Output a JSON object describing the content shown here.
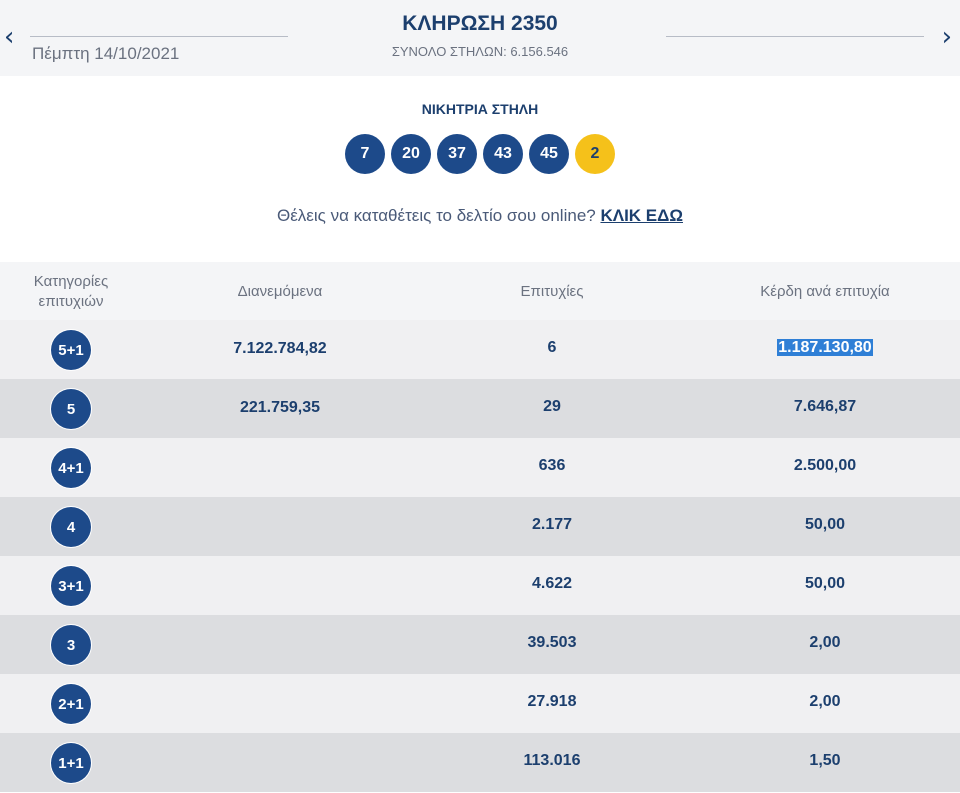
{
  "header": {
    "date": "Πέμπτη 14/10/2021",
    "title": "ΚΛΗΡΩΣΗ 2350",
    "total_columns": "ΣΥΝΟΛΟ ΣΤΗΛΩΝ: 6.156.546",
    "prev_icon": "chevron-left-icon",
    "next_icon": "chevron-right-icon",
    "prev_glyph": "‹",
    "next_glyph": "›"
  },
  "winning": {
    "label": "ΝΙΚΗΤΡΙΑ ΣΤΗΛΗ",
    "numbers": [
      "7",
      "20",
      "37",
      "43",
      "45"
    ],
    "bonus": "2"
  },
  "promo": {
    "text": "Θέλεις να καταθέτεις το δελτίο σου online?",
    "link": "ΚΛΙΚ ΕΔΩ"
  },
  "table": {
    "headers": {
      "category_line1": "Κατηγορίες",
      "category_line2": "επιτυχιών",
      "distributed": "Διανεμόμενα",
      "winners": "Επιτυχίες",
      "prize": "Κέρδη ανά επιτυχία"
    },
    "rows": [
      {
        "category": "5+1",
        "distributed": "7.122.784,82",
        "winners": "6",
        "prize": "1.187.130,80"
      },
      {
        "category": "5",
        "distributed": "221.759,35",
        "winners": "29",
        "prize": "7.646,87"
      },
      {
        "category": "4+1",
        "distributed": "",
        "winners": "636",
        "prize": "2.500,00"
      },
      {
        "category": "4",
        "distributed": "",
        "winners": "2.177",
        "prize": "50,00"
      },
      {
        "category": "3+1",
        "distributed": "",
        "winners": "4.622",
        "prize": "50,00"
      },
      {
        "category": "3",
        "distributed": "",
        "winners": "39.503",
        "prize": "2,00"
      },
      {
        "category": "2+1",
        "distributed": "",
        "winners": "27.918",
        "prize": "2,00"
      },
      {
        "category": "1+1",
        "distributed": "",
        "winners": "113.016",
        "prize": "1,50"
      }
    ]
  },
  "colors": {
    "primary": "#1d4a8a",
    "bonus": "#f5c11a",
    "highlight": "#2f7fd6"
  }
}
